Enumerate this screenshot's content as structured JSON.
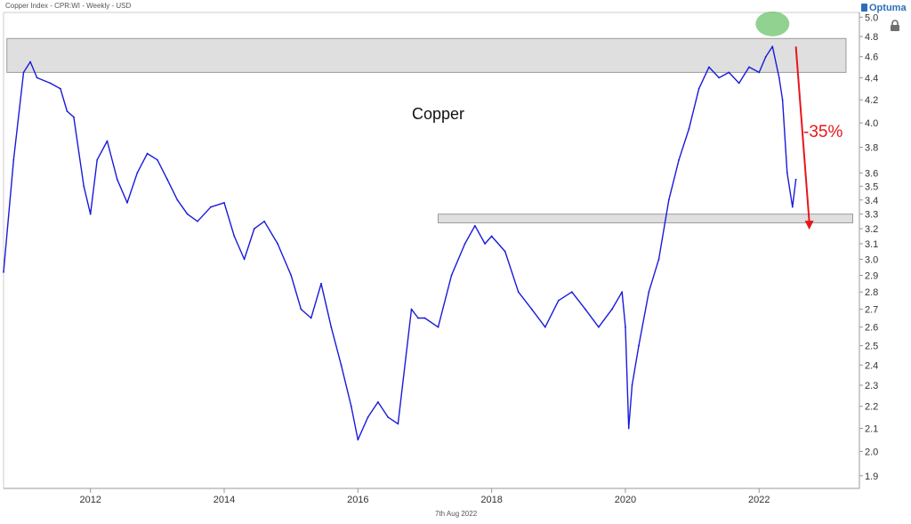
{
  "header": {
    "text": "Copper Index - CPR:WI - Weekly - USD"
  },
  "brand": {
    "name": "Optuma"
  },
  "footer": {
    "date": "7th Aug 2022"
  },
  "chart_data": {
    "type": "line",
    "title": "Copper",
    "xlabel": "",
    "ylabel": "",
    "y_scale": "log",
    "ylim": [
      1.85,
      5.05
    ],
    "xlim": [
      2010.7,
      2023.5
    ],
    "x_ticks": [
      2012,
      2014,
      2016,
      2018,
      2020,
      2022
    ],
    "y_ticks": [
      1.9,
      2.0,
      2.1,
      2.2,
      2.3,
      2.4,
      2.5,
      2.6,
      2.7,
      2.8,
      2.9,
      3.0,
      3.1,
      3.2,
      3.3,
      3.4,
      3.5,
      3.6,
      3.8,
      4.0,
      4.2,
      4.4,
      4.6,
      4.8,
      5.0
    ],
    "y_tick_labels": [
      "1.9",
      "2.0",
      "2.1",
      "2.2",
      "2.3",
      "2.4",
      "2.5",
      "2.6",
      "2.7",
      "2.8",
      "2.9",
      "3.0",
      "3.1",
      "3.2",
      "3.3",
      "3.4",
      "3.5",
      "3.6",
      "3.8",
      "4.0",
      "4.2",
      "4.4",
      "4.6",
      "4.8",
      "5.0"
    ],
    "series": [
      {
        "color": "#1a1adb",
        "x": [
          2010.7,
          2010.85,
          2011.0,
          2011.1,
          2011.2,
          2011.4,
          2011.55,
          2011.65,
          2011.75,
          2011.9,
          2012.0,
          2012.1,
          2012.25,
          2012.4,
          2012.55,
          2012.7,
          2012.85,
          2013.0,
          2013.15,
          2013.3,
          2013.45,
          2013.6,
          2013.8,
          2014.0,
          2014.15,
          2014.3,
          2014.45,
          2014.6,
          2014.8,
          2015.0,
          2015.15,
          2015.3,
          2015.45,
          2015.6,
          2015.75,
          2015.9,
          2016.0,
          2016.15,
          2016.3,
          2016.45,
          2016.6,
          2016.8,
          2016.9,
          2017.0,
          2017.2,
          2017.4,
          2017.6,
          2017.75,
          2017.9,
          2018.0,
          2018.2,
          2018.4,
          2018.6,
          2018.8,
          2019.0,
          2019.2,
          2019.4,
          2019.6,
          2019.8,
          2019.95,
          2020.0,
          2020.05,
          2020.1,
          2020.2,
          2020.35,
          2020.5,
          2020.65,
          2020.8,
          2020.95,
          2021.1,
          2021.25,
          2021.4,
          2021.55,
          2021.7,
          2021.85,
          2022.0,
          2022.1,
          2022.2,
          2022.3,
          2022.35,
          2022.42,
          2022.5,
          2022.55
        ],
        "y": [
          2.92,
          3.7,
          4.45,
          4.55,
          4.4,
          4.35,
          4.3,
          4.1,
          4.05,
          3.5,
          3.3,
          3.7,
          3.85,
          3.55,
          3.38,
          3.6,
          3.75,
          3.7,
          3.55,
          3.4,
          3.3,
          3.25,
          3.35,
          3.38,
          3.15,
          3.0,
          3.2,
          3.25,
          3.1,
          2.9,
          2.7,
          2.65,
          2.85,
          2.6,
          2.4,
          2.2,
          2.05,
          2.15,
          2.22,
          2.15,
          2.12,
          2.7,
          2.65,
          2.65,
          2.6,
          2.9,
          3.1,
          3.22,
          3.1,
          3.15,
          3.05,
          2.8,
          2.7,
          2.6,
          2.75,
          2.8,
          2.7,
          2.6,
          2.7,
          2.8,
          2.6,
          2.1,
          2.3,
          2.5,
          2.8,
          3.0,
          3.4,
          3.7,
          3.95,
          4.3,
          4.5,
          4.4,
          4.45,
          4.35,
          4.5,
          4.45,
          4.6,
          4.7,
          4.4,
          4.2,
          3.6,
          3.35,
          3.55
        ]
      }
    ],
    "shaded_bands": [
      {
        "y_low": 4.45,
        "y_high": 4.78,
        "x_start": 2010.75,
        "x_end": 2023.3
      },
      {
        "y_low": 3.24,
        "y_high": 3.3,
        "x_start": 2017.2,
        "x_end": 2023.4
      }
    ],
    "highlight_circle": {
      "x": 2022.2,
      "y": 4.93
    },
    "arrow": {
      "x_start": 2022.55,
      "y_start": 4.7,
      "x_end": 2022.75,
      "y_end": 3.2,
      "label": "-35%"
    },
    "colors": {
      "line": "#1a1adb",
      "band_fill": "#d9d9d9",
      "band_stroke": "#9a9a9a",
      "arrow": "#e8161b",
      "circle": "#6cc36c"
    }
  }
}
